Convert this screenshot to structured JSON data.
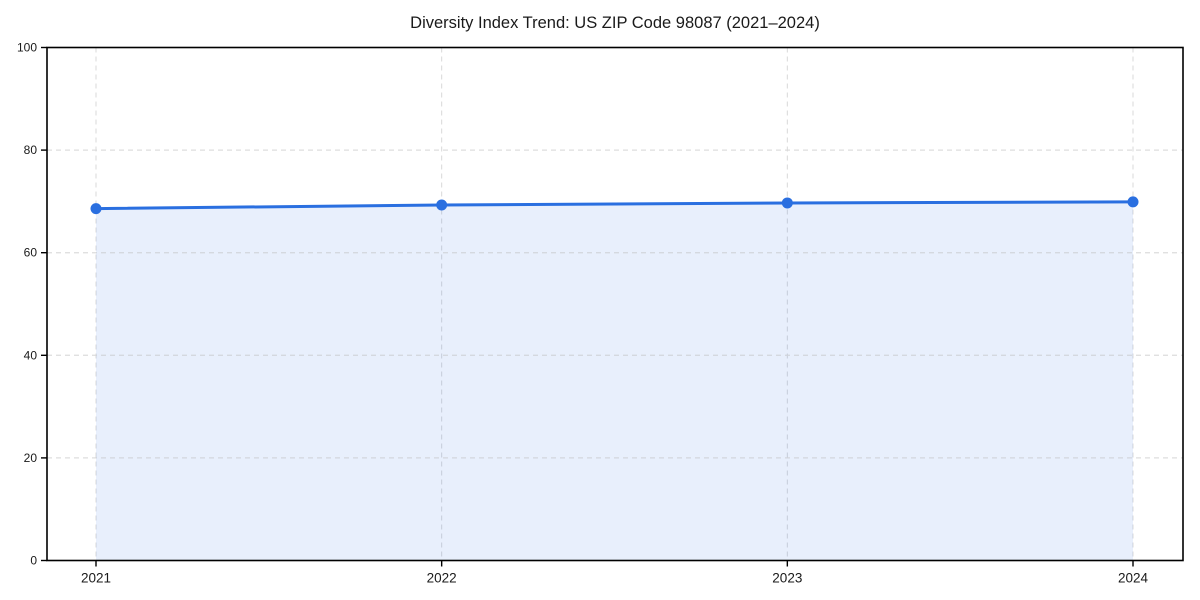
{
  "chart_data": {
    "type": "area",
    "title": "Diversity Index Trend: US ZIP Code 98087 (2021–2024)",
    "categories": [
      "2021",
      "2022",
      "2023",
      "2024"
    ],
    "series": [
      {
        "name": "Diversity Index",
        "values": [
          68.6,
          69.3,
          69.7,
          69.9
        ]
      }
    ],
    "xlabel": "",
    "ylabel": "",
    "ylim": [
      0,
      100
    ],
    "yticks": [
      0,
      20,
      40,
      60,
      80,
      100
    ],
    "grid": "dashed, both axes, light gray",
    "legend": "none",
    "colors": {
      "line": "#2A6FE0",
      "marker": "#2A6FE0",
      "area_fill": "#2A6FE0",
      "grid": "#D9D9D9",
      "spine": "#000000",
      "text": "#1A1A1A",
      "background": "#FFFFFF"
    },
    "area_fill_opacity": 0.11
  }
}
